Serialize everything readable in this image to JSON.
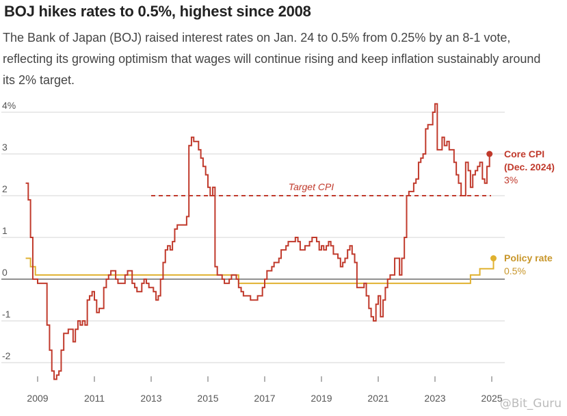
{
  "title": "BOJ hikes rates to 0.5%, highest since 2008",
  "subtitle": "The Bank of Japan (BOJ) raised interest rates on Jan. 24 to 0.5% from 0.25% by an 8-1 vote, reflecting its growing optimism that wages will continue rising and keep inflation sustainably around its 2% target.",
  "watermark": "@Bit_Guru",
  "chart_data": {
    "type": "line",
    "xlim": [
      2008.6,
      2025.1
    ],
    "ylim": [
      -2.5,
      4.2
    ],
    "y_ticks": [
      {
        "value": 4,
        "label": "4%"
      },
      {
        "value": 3,
        "label": "3"
      },
      {
        "value": 2,
        "label": "2"
      },
      {
        "value": 1,
        "label": "1"
      },
      {
        "value": 0,
        "label": "0"
      },
      {
        "value": -1,
        "label": "-1"
      },
      {
        "value": -2,
        "label": "-2"
      }
    ],
    "x_ticks": [
      {
        "value": 2009,
        "label": "2009"
      },
      {
        "value": 2011,
        "label": "2011"
      },
      {
        "value": 2013,
        "label": "2013"
      },
      {
        "value": 2015,
        "label": "2015"
      },
      {
        "value": 2017,
        "label": "2017"
      },
      {
        "value": 2019,
        "label": "2019"
      },
      {
        "value": 2021,
        "label": "2021"
      },
      {
        "value": 2023,
        "label": "2023"
      },
      {
        "value": 2025,
        "label": "2025"
      }
    ],
    "grid": true,
    "target": {
      "value": 2,
      "start": 2013,
      "end": 2025,
      "label": "Target CPI"
    },
    "series": [
      {
        "name": "Core CPI",
        "color": "#c0392b",
        "end_label": "Core CPI",
        "end_label_2": "(Dec. 2024)",
        "end_value_label": "3%",
        "points": [
          [
            2008.58,
            2.3
          ],
          [
            2008.67,
            1.9
          ],
          [
            2008.75,
            1.0
          ],
          [
            2008.83,
            0.0
          ],
          [
            2008.92,
            0.0
          ],
          [
            2009.0,
            -0.1
          ],
          [
            2009.08,
            -0.1
          ],
          [
            2009.17,
            -0.1
          ],
          [
            2009.25,
            -0.1
          ],
          [
            2009.33,
            -1.1
          ],
          [
            2009.42,
            -1.7
          ],
          [
            2009.5,
            -2.2
          ],
          [
            2009.58,
            -2.4
          ],
          [
            2009.67,
            -2.3
          ],
          [
            2009.75,
            -2.2
          ],
          [
            2009.83,
            -1.7
          ],
          [
            2009.92,
            -1.3
          ],
          [
            2010.0,
            -1.3
          ],
          [
            2010.08,
            -1.2
          ],
          [
            2010.17,
            -1.2
          ],
          [
            2010.25,
            -1.5
          ],
          [
            2010.33,
            -1.2
          ],
          [
            2010.42,
            -1.0
          ],
          [
            2010.5,
            -1.1
          ],
          [
            2010.58,
            -1.0
          ],
          [
            2010.67,
            -1.1
          ],
          [
            2010.75,
            -0.5
          ],
          [
            2010.83,
            -0.4
          ],
          [
            2010.92,
            -0.3
          ],
          [
            2011.0,
            -0.5
          ],
          [
            2011.08,
            -0.8
          ],
          [
            2011.17,
            -0.7
          ],
          [
            2011.25,
            -0.7
          ],
          [
            2011.33,
            -0.2
          ],
          [
            2011.42,
            0.0
          ],
          [
            2011.5,
            0.1
          ],
          [
            2011.58,
            0.2
          ],
          [
            2011.67,
            0.2
          ],
          [
            2011.75,
            0.0
          ],
          [
            2011.83,
            -0.1
          ],
          [
            2011.92,
            -0.1
          ],
          [
            2012.0,
            -0.1
          ],
          [
            2012.08,
            0.1
          ],
          [
            2012.17,
            0.2
          ],
          [
            2012.25,
            0.2
          ],
          [
            2012.33,
            -0.1
          ],
          [
            2012.42,
            -0.2
          ],
          [
            2012.5,
            -0.3
          ],
          [
            2012.58,
            -0.3
          ],
          [
            2012.67,
            -0.1
          ],
          [
            2012.75,
            0.0
          ],
          [
            2012.83,
            -0.1
          ],
          [
            2012.92,
            -0.2
          ],
          [
            2013.0,
            -0.2
          ],
          [
            2013.08,
            -0.3
          ],
          [
            2013.17,
            -0.5
          ],
          [
            2013.25,
            -0.4
          ],
          [
            2013.33,
            0.0
          ],
          [
            2013.42,
            0.4
          ],
          [
            2013.5,
            0.7
          ],
          [
            2013.58,
            0.8
          ],
          [
            2013.67,
            0.7
          ],
          [
            2013.75,
            0.9
          ],
          [
            2013.83,
            1.2
          ],
          [
            2013.92,
            1.3
          ],
          [
            2014.08,
            1.3
          ],
          [
            2014.25,
            1.5
          ],
          [
            2014.33,
            3.2
          ],
          [
            2014.42,
            3.4
          ],
          [
            2014.5,
            3.3
          ],
          [
            2014.67,
            3.1
          ],
          [
            2014.75,
            2.9
          ],
          [
            2014.83,
            2.7
          ],
          [
            2014.92,
            2.5
          ],
          [
            2015.0,
            2.2
          ],
          [
            2015.08,
            2.0
          ],
          [
            2015.17,
            2.2
          ],
          [
            2015.25,
            0.3
          ],
          [
            2015.33,
            0.1
          ],
          [
            2015.42,
            0.1
          ],
          [
            2015.5,
            0.0
          ],
          [
            2015.58,
            -0.1
          ],
          [
            2015.67,
            -0.1
          ],
          [
            2015.75,
            0.0
          ],
          [
            2015.83,
            0.1
          ],
          [
            2015.92,
            0.1
          ],
          [
            2016.0,
            0.0
          ],
          [
            2016.08,
            -0.2
          ],
          [
            2016.17,
            -0.3
          ],
          [
            2016.25,
            -0.4
          ],
          [
            2016.42,
            -0.4
          ],
          [
            2016.5,
            -0.5
          ],
          [
            2016.75,
            -0.4
          ],
          [
            2016.83,
            -0.4
          ],
          [
            2016.92,
            -0.2
          ],
          [
            2017.0,
            0.0
          ],
          [
            2017.08,
            0.2
          ],
          [
            2017.17,
            0.2
          ],
          [
            2017.25,
            0.3
          ],
          [
            2017.33,
            0.4
          ],
          [
            2017.42,
            0.4
          ],
          [
            2017.5,
            0.5
          ],
          [
            2017.58,
            0.7
          ],
          [
            2017.67,
            0.7
          ],
          [
            2017.75,
            0.8
          ],
          [
            2017.83,
            0.9
          ],
          [
            2017.92,
            0.9
          ],
          [
            2018.0,
            0.9
          ],
          [
            2018.08,
            1.0
          ],
          [
            2018.17,
            0.9
          ],
          [
            2018.25,
            0.7
          ],
          [
            2018.33,
            0.7
          ],
          [
            2018.42,
            0.8
          ],
          [
            2018.5,
            0.8
          ],
          [
            2018.58,
            0.9
          ],
          [
            2018.67,
            1.0
          ],
          [
            2018.75,
            1.0
          ],
          [
            2018.83,
            0.9
          ],
          [
            2018.92,
            0.7
          ],
          [
            2019.0,
            0.8
          ],
          [
            2019.08,
            0.7
          ],
          [
            2019.17,
            0.8
          ],
          [
            2019.25,
            0.9
          ],
          [
            2019.33,
            0.8
          ],
          [
            2019.42,
            0.6
          ],
          [
            2019.5,
            0.6
          ],
          [
            2019.58,
            0.5
          ],
          [
            2019.67,
            0.3
          ],
          [
            2019.75,
            0.4
          ],
          [
            2019.83,
            0.5
          ],
          [
            2019.92,
            0.7
          ],
          [
            2020.0,
            0.8
          ],
          [
            2020.08,
            0.6
          ],
          [
            2020.17,
            0.4
          ],
          [
            2020.25,
            -0.2
          ],
          [
            2020.33,
            -0.2
          ],
          [
            2020.5,
            -0.1
          ],
          [
            2020.58,
            -0.4
          ],
          [
            2020.67,
            -0.7
          ],
          [
            2020.75,
            -0.9
          ],
          [
            2020.83,
            -1.0
          ],
          [
            2020.92,
            -0.6
          ],
          [
            2021.0,
            -0.4
          ],
          [
            2021.08,
            -0.9
          ],
          [
            2021.17,
            -0.5
          ],
          [
            2021.25,
            -0.2
          ],
          [
            2021.33,
            0.0
          ],
          [
            2021.42,
            0.1
          ],
          [
            2021.5,
            0.1
          ],
          [
            2021.58,
            0.5
          ],
          [
            2021.67,
            0.5
          ],
          [
            2021.75,
            0.1
          ],
          [
            2021.83,
            0.5
          ],
          [
            2021.92,
            1.0
          ],
          [
            2022.0,
            2.0
          ],
          [
            2022.08,
            2.1
          ],
          [
            2022.17,
            2.1
          ],
          [
            2022.25,
            2.3
          ],
          [
            2022.33,
            2.4
          ],
          [
            2022.42,
            2.8
          ],
          [
            2022.5,
            2.9
          ],
          [
            2022.58,
            3.0
          ],
          [
            2022.67,
            3.6
          ],
          [
            2022.75,
            3.7
          ],
          [
            2022.83,
            3.7
          ],
          [
            2022.92,
            4.0
          ],
          [
            2023.0,
            4.2
          ],
          [
            2023.08,
            3.1
          ],
          [
            2023.17,
            3.1
          ],
          [
            2023.25,
            3.4
          ],
          [
            2023.33,
            3.2
          ],
          [
            2023.42,
            3.3
          ],
          [
            2023.5,
            3.1
          ],
          [
            2023.58,
            3.1
          ],
          [
            2023.67,
            2.8
          ],
          [
            2023.75,
            2.5
          ],
          [
            2023.83,
            2.3
          ],
          [
            2023.92,
            2.0
          ],
          [
            2024.0,
            2.0
          ],
          [
            2024.08,
            2.8
          ],
          [
            2024.17,
            2.6
          ],
          [
            2024.25,
            2.2
          ],
          [
            2024.33,
            2.5
          ],
          [
            2024.42,
            2.6
          ],
          [
            2024.5,
            2.7
          ],
          [
            2024.58,
            2.8
          ],
          [
            2024.67,
            2.4
          ],
          [
            2024.75,
            2.3
          ],
          [
            2024.83,
            2.7
          ],
          [
            2024.92,
            3.0
          ]
        ]
      },
      {
        "name": "Policy rate",
        "color": "#e0b12f",
        "end_label": "Policy rate",
        "end_value_label": "0.5%",
        "points": [
          [
            2008.58,
            0.5
          ],
          [
            2008.75,
            0.5
          ],
          [
            2008.75,
            0.3
          ],
          [
            2008.92,
            0.3
          ],
          [
            2008.92,
            0.1
          ],
          [
            2013.33,
            0.1
          ],
          [
            2016.08,
            0.1
          ],
          [
            2016.08,
            -0.1
          ],
          [
            2024.25,
            -0.1
          ],
          [
            2024.25,
            0.1
          ],
          [
            2024.58,
            0.1
          ],
          [
            2024.58,
            0.25
          ],
          [
            2025.06,
            0.25
          ],
          [
            2025.06,
            0.5
          ]
        ]
      }
    ]
  }
}
